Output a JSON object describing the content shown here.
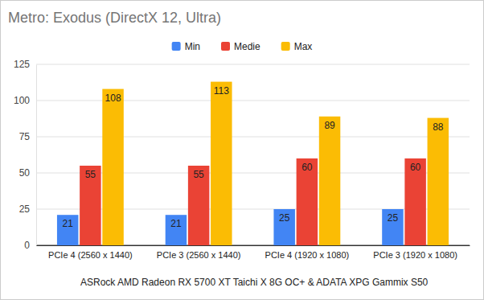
{
  "chart_data": {
    "type": "bar",
    "title": "Metro: Exodus (DirectX 12, Ultra)",
    "x_label": "ASRock AMD Radeon RX 5700 XT Taichi X 8G OC+ & ADATA XPG Gammix S50",
    "categories": [
      "PCIe 4 (2560 x 1440)",
      "PCIe 3 (2560 x 1440)",
      "PCIe 4 (1920 x 1080)",
      "PCIe 3 (1920 x 1080)"
    ],
    "series": [
      {
        "name": "Min",
        "color": "#4285f4",
        "values": [
          21,
          21,
          25,
          25
        ]
      },
      {
        "name": "Medie",
        "color": "#ea4335",
        "values": [
          55,
          55,
          60,
          60
        ]
      },
      {
        "name": "Max",
        "color": "#fbbc04",
        "values": [
          108,
          113,
          89,
          88
        ]
      }
    ],
    "ylim": [
      0,
      125
    ],
    "yticks": [
      0,
      25,
      50,
      75,
      100,
      125
    ],
    "grid": true,
    "legend": "top",
    "data_labels": true
  }
}
